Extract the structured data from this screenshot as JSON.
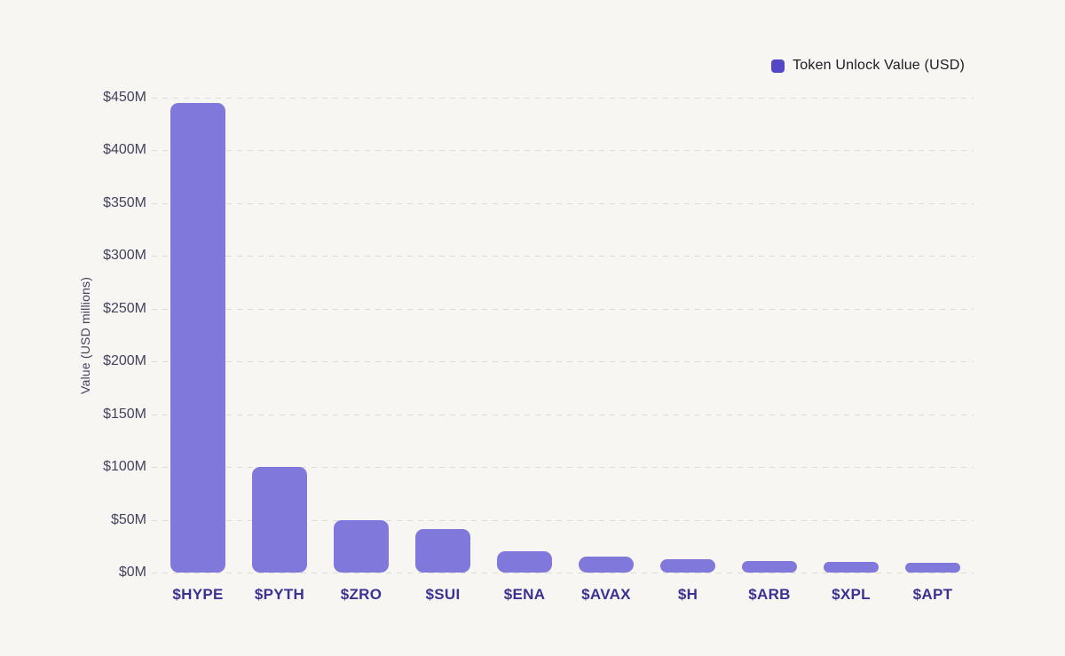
{
  "legend": {
    "label": "Token Unlock Value (USD)"
  },
  "colors": {
    "bar": "#8178db",
    "legend_swatch": "#5447c5",
    "x_label": "#3a3193",
    "y_label": "#45435c",
    "background": "#f7f6f3",
    "gridline": "#dcdad6"
  },
  "chart_data": {
    "type": "bar",
    "title": "",
    "ylabel": "Value (USD millions)",
    "xlabel": "",
    "units": "USD millions",
    "legend_position": "top-right",
    "grid": "horizontal-dashed",
    "ylim": [
      0,
      450
    ],
    "categories": [
      "$HYPE",
      "$PYTH",
      "$ZRO",
      "$SUI",
      "$ENA",
      "$AVAX",
      "$H",
      "$ARB",
      "$XPL",
      "$APT"
    ],
    "series": [
      {
        "name": "Token Unlock Value (USD)",
        "values": [
          445,
          100,
          50,
          41,
          20,
          15,
          13,
          11,
          10,
          9.5
        ]
      }
    ],
    "yticks": [
      {
        "value": 0,
        "label": "$0M"
      },
      {
        "value": 50,
        "label": "$50M"
      },
      {
        "value": 100,
        "label": "$100M"
      },
      {
        "value": 150,
        "label": "$150M"
      },
      {
        "value": 200,
        "label": "$200M"
      },
      {
        "value": 250,
        "label": "$250M"
      },
      {
        "value": 300,
        "label": "$300M"
      },
      {
        "value": 350,
        "label": "$350M"
      },
      {
        "value": 400,
        "label": "$400M"
      },
      {
        "value": 450,
        "label": "$450M"
      }
    ]
  }
}
